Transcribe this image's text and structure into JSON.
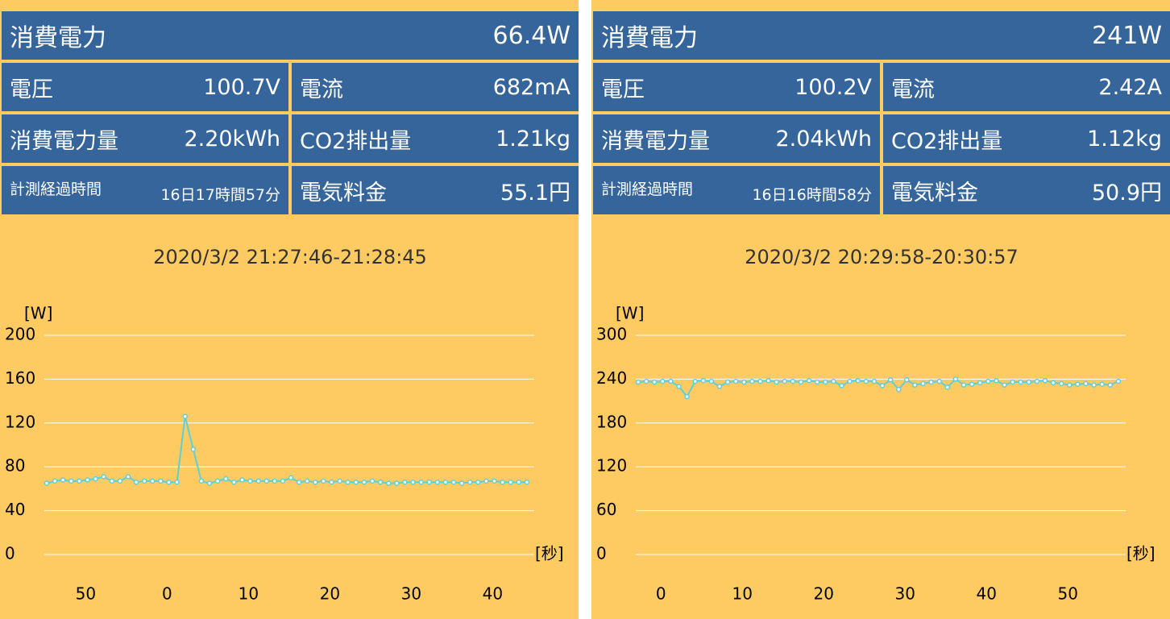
{
  "panels": [
    {
      "power": {
        "label": "消費電力",
        "value": "66.4W"
      },
      "cells": [
        [
          {
            "label": "電圧",
            "value": "100.7V"
          },
          {
            "label": "電流",
            "value": "682mA"
          }
        ],
        [
          {
            "label": "消費電力量",
            "value": "2.20kWh"
          },
          {
            "label": "CO2排出量",
            "value": "1.21kg"
          }
        ],
        [
          {
            "label": "計測経過時間",
            "value": "16日17時間57分"
          },
          {
            "label": "電気料金",
            "value": "55.1円"
          }
        ]
      ],
      "chart": {
        "type": "line",
        "title": "2020/3/2 21:27:46-21:28:45",
        "y_label": "[W]",
        "x_label": "[秒]",
        "color": "#5fcfd6",
        "grid": true,
        "ylim": [
          0,
          200
        ],
        "yticks": [
          0,
          40,
          80,
          120,
          160,
          200
        ],
        "categories": [
          null,
          null,
          null,
          null,
          "50",
          null,
          null,
          null,
          null,
          null,
          null,
          null,
          null,
          null,
          "0",
          null,
          null,
          null,
          null,
          null,
          null,
          null,
          null,
          null,
          "10",
          null,
          null,
          null,
          null,
          null,
          null,
          null,
          null,
          null,
          "20",
          null,
          null,
          null,
          null,
          null,
          null,
          null,
          null,
          null,
          "30",
          null,
          null,
          null,
          null,
          null,
          null,
          null,
          null,
          null,
          "40",
          null,
          null,
          null,
          null,
          null
        ],
        "values": [
          65,
          67,
          68,
          67,
          67,
          68,
          69,
          71,
          67,
          67,
          71,
          66,
          67,
          67,
          67,
          66,
          66,
          126,
          96,
          67,
          65,
          67,
          69,
          66,
          68,
          67,
          67,
          67,
          67,
          67,
          70,
          66,
          67,
          66,
          67,
          66,
          67,
          66,
          66,
          66,
          67,
          66,
          65,
          65,
          66,
          66,
          66,
          66,
          66,
          66,
          66,
          65,
          66,
          66,
          67,
          67,
          66,
          66,
          66,
          66
        ]
      }
    },
    {
      "power": {
        "label": "消費電力",
        "value": "241W"
      },
      "cells": [
        [
          {
            "label": "電圧",
            "value": "100.2V"
          },
          {
            "label": "電流",
            "value": "2.42A"
          }
        ],
        [
          {
            "label": "消費電力量",
            "value": "2.04kWh"
          },
          {
            "label": "CO2排出量",
            "value": "1.12kg"
          }
        ],
        [
          {
            "label": "計測経過時間",
            "value": "16日16時間58分"
          },
          {
            "label": "電気料金",
            "value": "50.9円"
          }
        ]
      ],
      "chart": {
        "type": "line",
        "title": "2020/3/2 20:29:58-20:30:57",
        "y_label": "[W]",
        "x_label": "[秒]",
        "color": "#5fcfd6",
        "grid": true,
        "ylim": [
          0,
          300
        ],
        "yticks": [
          0,
          60,
          120,
          180,
          240,
          300
        ],
        "categories": [
          null,
          null,
          "0",
          null,
          null,
          null,
          null,
          null,
          null,
          null,
          null,
          null,
          "10",
          null,
          null,
          null,
          null,
          null,
          null,
          null,
          null,
          null,
          "20",
          null,
          null,
          null,
          null,
          null,
          null,
          null,
          null,
          null,
          "30",
          null,
          null,
          null,
          null,
          null,
          null,
          null,
          null,
          null,
          "40",
          null,
          null,
          null,
          null,
          null,
          null,
          null,
          null,
          null,
          "50",
          null,
          null,
          null,
          null,
          null,
          null,
          null
        ],
        "values": [
          236,
          237,
          236,
          237,
          237,
          230,
          216,
          237,
          238,
          237,
          230,
          236,
          237,
          236,
          237,
          237,
          238,
          236,
          237,
          237,
          236,
          238,
          236,
          236,
          237,
          231,
          237,
          238,
          237,
          237,
          231,
          239,
          226,
          239,
          232,
          234,
          236,
          237,
          229,
          240,
          232,
          233,
          235,
          237,
          238,
          232,
          236,
          236,
          236,
          237,
          238,
          235,
          234,
          232,
          233,
          234,
          232,
          233,
          232,
          237
        ]
      }
    }
  ]
}
